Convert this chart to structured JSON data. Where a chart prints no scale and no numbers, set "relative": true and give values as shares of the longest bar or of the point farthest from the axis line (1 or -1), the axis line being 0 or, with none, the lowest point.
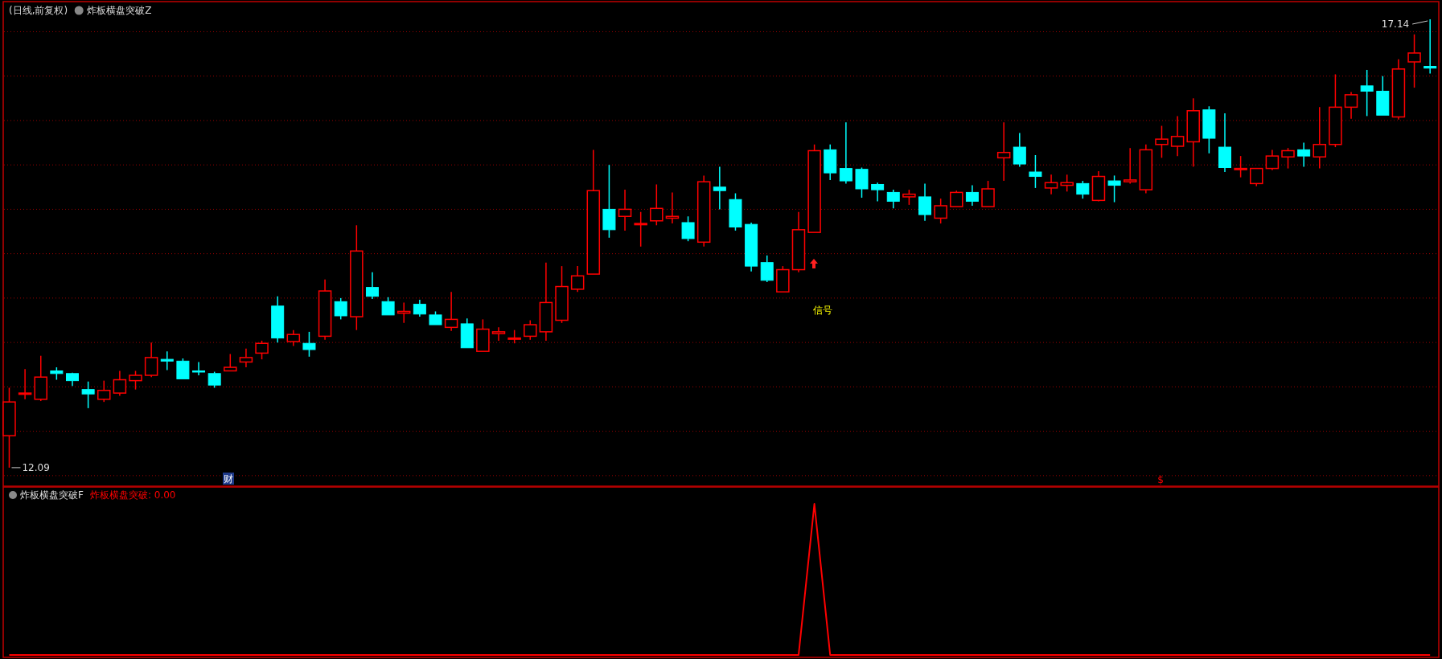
{
  "chart_data": [
    {
      "type": "candlestick",
      "title": "(日线,前复权)",
      "subtitle": "炸板横盘突破Z",
      "categories": [
        null,
        null,
        null,
        null,
        null,
        null,
        null,
        null,
        null,
        null,
        null,
        null,
        null,
        null,
        null,
        null,
        null,
        null,
        null,
        null,
        null,
        null,
        null,
        null,
        null,
        null,
        null,
        null,
        null,
        null,
        null,
        null,
        null,
        null,
        null,
        null,
        null,
        null,
        null,
        null,
        null,
        null,
        null,
        null,
        null,
        null,
        null,
        null,
        null,
        null,
        null,
        null,
        null,
        null,
        null,
        null,
        null,
        null,
        null,
        null,
        null,
        null,
        null,
        null,
        null,
        null,
        null,
        null,
        null,
        null,
        null,
        null,
        null,
        null,
        null,
        null,
        null,
        null,
        null,
        null,
        null,
        null,
        null,
        null,
        null,
        null,
        null,
        null,
        null,
        null,
        null
      ],
      "ohlc": [
        [
          12.45,
          12.99,
          12.09,
          12.83
        ],
        [
          12.93,
          13.2,
          12.86,
          12.93
        ],
        [
          12.86,
          13.35,
          12.84,
          13.11
        ],
        [
          13.18,
          13.22,
          13.08,
          13.15
        ],
        [
          13.15,
          13.16,
          13.01,
          13.07
        ],
        [
          12.97,
          13.06,
          12.76,
          12.92
        ],
        [
          12.86,
          13.07,
          12.83,
          12.96
        ],
        [
          12.93,
          13.18,
          12.9,
          13.08
        ],
        [
          13.07,
          13.18,
          12.97,
          13.13
        ],
        [
          13.13,
          13.5,
          13.11,
          13.33
        ],
        [
          13.31,
          13.4,
          13.19,
          13.29
        ],
        [
          13.29,
          13.32,
          13.09,
          13.09
        ],
        [
          13.18,
          13.28,
          13.13,
          13.17
        ],
        [
          13.15,
          13.17,
          12.99,
          13.02
        ],
        [
          13.18,
          13.37,
          13.18,
          13.22
        ],
        [
          13.28,
          13.43,
          13.22,
          13.33
        ],
        [
          13.38,
          13.52,
          13.31,
          13.49
        ],
        [
          13.91,
          14.02,
          13.5,
          13.55
        ],
        [
          13.51,
          13.64,
          13.46,
          13.59
        ],
        [
          13.49,
          13.62,
          13.34,
          13.42
        ],
        [
          13.57,
          14.21,
          13.53,
          14.08
        ],
        [
          13.96,
          14.0,
          13.76,
          13.8
        ],
        [
          13.79,
          14.82,
          13.64,
          14.53
        ],
        [
          14.12,
          14.29,
          13.99,
          14.02
        ],
        [
          13.96,
          14.01,
          13.81,
          13.81
        ],
        [
          13.83,
          13.95,
          13.72,
          13.85
        ],
        [
          13.93,
          13.98,
          13.79,
          13.82
        ],
        [
          13.81,
          13.85,
          13.7,
          13.7
        ],
        [
          13.67,
          14.07,
          13.63,
          13.76
        ],
        [
          13.71,
          13.77,
          13.44,
          13.44
        ],
        [
          13.4,
          13.76,
          13.4,
          13.65
        ],
        [
          13.6,
          13.67,
          13.52,
          13.62
        ],
        [
          13.54,
          13.64,
          13.49,
          13.55
        ],
        [
          13.57,
          13.75,
          13.53,
          13.7
        ],
        [
          13.62,
          14.4,
          13.52,
          13.95
        ],
        [
          13.75,
          14.36,
          13.72,
          14.13
        ],
        [
          14.1,
          14.36,
          14.07,
          14.25
        ],
        [
          14.27,
          15.67,
          14.27,
          15.21
        ],
        [
          15.0,
          15.5,
          14.68,
          14.77
        ],
        [
          14.92,
          15.22,
          14.76,
          15.0
        ],
        [
          14.84,
          14.97,
          14.58,
          14.84
        ],
        [
          14.87,
          15.28,
          14.82,
          15.01
        ],
        [
          14.9,
          15.19,
          14.84,
          14.92
        ],
        [
          14.85,
          14.92,
          14.64,
          14.67
        ],
        [
          14.63,
          15.38,
          14.58,
          15.31
        ],
        [
          15.25,
          15.48,
          15.0,
          15.21
        ],
        [
          15.11,
          15.18,
          14.76,
          14.8
        ],
        [
          14.83,
          14.85,
          14.3,
          14.36
        ],
        [
          14.4,
          14.48,
          14.18,
          14.2
        ],
        [
          14.07,
          14.36,
          14.07,
          14.32
        ],
        [
          14.32,
          14.97,
          14.29,
          14.77
        ],
        [
          14.74,
          15.73,
          14.74,
          15.66
        ],
        [
          15.67,
          15.73,
          15.33,
          15.41
        ],
        [
          15.46,
          15.98,
          15.29,
          15.32
        ],
        [
          15.45,
          15.47,
          15.13,
          15.23
        ],
        [
          15.28,
          15.3,
          15.09,
          15.22
        ],
        [
          15.19,
          15.22,
          15.01,
          15.09
        ],
        [
          15.14,
          15.22,
          15.05,
          15.17
        ],
        [
          15.14,
          15.29,
          14.87,
          14.94
        ],
        [
          14.9,
          15.12,
          14.84,
          15.04
        ],
        [
          15.03,
          15.21,
          15.03,
          15.19
        ],
        [
          15.19,
          15.27,
          15.04,
          15.09
        ],
        [
          15.03,
          15.32,
          15.03,
          15.23
        ],
        [
          15.58,
          15.98,
          15.32,
          15.64
        ],
        [
          15.7,
          15.86,
          15.48,
          15.51
        ],
        [
          15.42,
          15.61,
          15.24,
          15.37
        ],
        [
          15.24,
          15.39,
          15.17,
          15.3
        ],
        [
          15.27,
          15.39,
          15.2,
          15.3
        ],
        [
          15.29,
          15.32,
          15.12,
          15.17
        ],
        [
          15.1,
          15.43,
          15.09,
          15.37
        ],
        [
          15.32,
          15.38,
          15.08,
          15.27
        ],
        [
          15.31,
          15.69,
          15.29,
          15.33
        ],
        [
          15.22,
          15.73,
          15.18,
          15.67
        ],
        [
          15.73,
          15.94,
          15.58,
          15.79
        ],
        [
          15.71,
          16.05,
          15.6,
          15.82
        ],
        [
          15.76,
          16.25,
          15.48,
          16.11
        ],
        [
          16.12,
          16.16,
          15.63,
          15.8
        ],
        [
          15.7,
          16.08,
          15.42,
          15.47
        ],
        [
          15.46,
          15.6,
          15.36,
          15.46
        ],
        [
          15.29,
          15.46,
          15.26,
          15.46
        ],
        [
          15.46,
          15.67,
          15.44,
          15.6
        ],
        [
          15.59,
          15.69,
          15.46,
          15.66
        ],
        [
          15.67,
          15.75,
          15.48,
          15.6
        ],
        [
          15.59,
          16.15,
          15.46,
          15.73
        ],
        [
          15.73,
          16.52,
          15.7,
          16.15
        ],
        [
          16.15,
          16.32,
          16.02,
          16.29
        ],
        [
          16.39,
          16.57,
          16.05,
          16.33
        ],
        [
          16.33,
          16.5,
          16.06,
          16.06
        ],
        [
          16.04,
          16.69,
          16.01,
          16.58
        ],
        [
          16.66,
          16.97,
          16.37,
          16.76
        ],
        [
          16.61,
          17.14,
          16.53,
          16.59
        ]
      ],
      "colors": [
        "#ff0000",
        "#ff0000",
        "#ff0000",
        "#00ffff",
        "#00ffff",
        "#00ffff",
        "#ff0000",
        "#ff0000",
        "#ff0000",
        "#ff0000",
        "#00ffff",
        "#00ffff",
        "#00ffff",
        "#00ffff",
        "#ff0000",
        "#ff0000",
        "#ff0000",
        "#00ffff",
        "#ff0000",
        "#00ffff",
        "#ff0000",
        "#00ffff",
        "#ff0000",
        "#00ffff",
        "#00ffff",
        "#ff0000",
        "#00ffff",
        "#00ffff",
        "#ff0000",
        "#00ffff",
        "#ff0000",
        "#ff0000",
        "#ff0000",
        "#ff0000",
        "#ff0000",
        "#ff0000",
        "#ff0000",
        "#ff0000",
        "#00ffff",
        "#ff0000",
        "#ff0000",
        "#ff0000",
        "#ff0000",
        "#00ffff",
        "#ff0000",
        "#00ffff",
        "#00ffff",
        "#00ffff",
        "#00ffff",
        "#ff0000",
        "#ff0000",
        "#ff0000",
        "#00ffff",
        "#00ffff",
        "#00ffff",
        "#00ffff",
        "#00ffff",
        "#ff0000",
        "#00ffff",
        "#ff0000",
        "#ff0000",
        "#00ffff",
        "#ff0000",
        "#ff0000",
        "#00ffff",
        "#00ffff",
        "#ff0000",
        "#ff0000",
        "#00ffff",
        "#ff0000",
        "#00ffff",
        "#ff0000",
        "#ff0000",
        "#ff0000",
        "#ff0000",
        "#ff0000",
        "#00ffff",
        "#00ffff",
        "#ff0000",
        "#ff0000",
        "#ff0000",
        "#ff0000",
        "#00ffff",
        "#ff0000",
        "#ff0000",
        "#ff0000",
        "#00ffff",
        "#00ffff",
        "#ff0000",
        "#ff0000",
        "#00ffff"
      ],
      "ylim": [
        11.89,
        17.33
      ],
      "yticks": [
        {
          "value": 12,
          "label": null
        },
        {
          "value": 12.5,
          "label": null
        },
        {
          "value": 13,
          "label": null
        },
        {
          "value": 13.5,
          "label": null
        },
        {
          "value": 14,
          "label": null
        },
        {
          "value": 14.5,
          "label": null
        },
        {
          "value": 15,
          "label": null
        },
        {
          "value": 15.5,
          "label": null
        },
        {
          "value": 16,
          "label": null
        },
        {
          "value": 16.5,
          "label": null
        },
        {
          "value": 17,
          "label": null
        }
      ],
      "grid": "y",
      "annotations": [
        "17.14",
        "12.09",
        "信号",
        "财",
        "$"
      ]
    },
    {
      "type": "line",
      "title": "炸板横盘突破F",
      "relative": true,
      "legend": "top left",
      "categories": [
        null,
        null,
        null,
        null,
        null,
        null,
        null,
        null,
        null,
        null,
        null,
        null,
        null,
        null,
        null,
        null,
        null,
        null,
        null,
        null,
        null,
        null,
        null,
        null,
        null,
        null,
        null,
        null,
        null,
        null,
        null,
        null,
        null,
        null,
        null,
        null,
        null,
        null,
        null,
        null,
        null,
        null,
        null,
        null,
        null,
        null,
        null,
        null,
        null,
        null,
        null,
        null,
        null,
        null,
        null,
        null,
        null,
        null,
        null,
        null,
        null,
        null,
        null,
        null,
        null,
        null,
        null,
        null,
        null,
        null,
        null,
        null,
        null,
        null,
        null,
        null,
        null,
        null,
        null,
        null,
        null,
        null,
        null,
        null,
        null,
        null,
        null,
        null,
        null,
        null,
        null
      ],
      "series": [
        {
          "name": "炸板横盘突破: 0.00",
          "color": "#ff0000",
          "values": [
            0,
            0,
            0,
            0,
            0,
            0,
            0,
            0,
            0,
            0,
            0,
            0,
            0,
            0,
            0,
            0,
            0,
            0,
            0,
            0,
            0,
            0,
            0,
            0,
            0,
            0,
            0,
            0,
            0,
            0,
            0,
            0,
            0,
            0,
            0,
            0,
            0,
            0,
            0,
            0,
            0,
            0,
            0,
            0,
            0,
            0,
            0,
            0,
            0,
            0,
            0,
            1,
            0,
            0,
            0,
            0,
            0,
            0,
            0,
            0,
            0,
            0,
            0,
            0,
            0,
            0,
            0,
            0,
            0,
            0,
            0,
            0,
            0,
            0,
            0,
            0,
            0,
            0,
            0,
            0,
            0,
            0,
            0,
            0,
            0,
            0,
            0,
            0,
            0,
            0,
            0
          ]
        }
      ]
    }
  ]
}
